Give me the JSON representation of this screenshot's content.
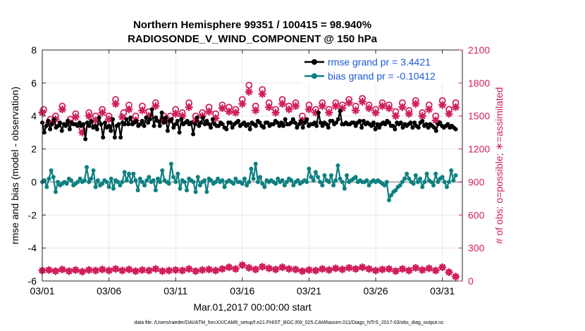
{
  "chart_data": {
    "type": "line",
    "title_line1": "Northern Hemisphere 99351 / 100415 = 98.940%",
    "title_line2": "RADIOSONDE_V_WIND_COMPONENT @ 150 hPa",
    "xlabel": "Mar.01,2017 00:00:00 start",
    "ylabel_left": "rmse and bias (model - observation)",
    "ylabel_right": "# of obs: o=possible; ∗=assimilated",
    "footnote": "data file: /Users/raeder/DAI/ATM_forcXX/CAM6_setup/f.e21.FHIST_BGC.f09_025.CAM6assim.011/Diags_NTrS_2017-03/obs_diag_output.nc",
    "xlim": [
      0,
      31.5
    ],
    "ylim_left": [
      -6,
      8
    ],
    "ylim_right": [
      0,
      2100
    ],
    "x_ticks": [
      0,
      5,
      10,
      15,
      20,
      25,
      30
    ],
    "x_tick_labels": [
      "03/01",
      "03/06",
      "03/11",
      "03/16",
      "03/21",
      "03/26",
      "03/31"
    ],
    "y_left_ticks": [
      "-6",
      "-4",
      "-2",
      "0",
      "2",
      "4",
      "6",
      "8"
    ],
    "y_right_ticks": [
      "0",
      "300",
      "600",
      "900",
      "1200",
      "1500",
      "1800",
      "2100"
    ],
    "colors": {
      "rmse": "#000000",
      "bias": "#0e8080",
      "obs": "#d01f5c",
      "legend_text": "#1a5ad6",
      "zero_line": "#b0b0b0",
      "grid": "#d9d9d9"
    },
    "series": [
      {
        "name": "rmse grand pr = 3.4421",
        "axis": "left",
        "values": [
          3.6,
          3.0,
          3.4,
          3.7,
          3.2,
          3.5,
          3.8,
          3.3,
          3.4,
          3.6,
          3.1,
          3.5,
          3.4,
          3.7,
          3.2,
          3.6,
          3.5,
          3.5,
          3.4,
          3.6,
          3.4,
          3.5,
          2.6,
          3.6,
          3.4,
          3.7,
          3.3,
          3.4,
          3.2,
          3.9,
          3.5,
          2.7,
          3.6,
          3.3,
          3.4,
          3.1,
          3.8,
          2.7,
          3.4,
          3.5,
          2.7,
          3.6,
          3.5,
          3.8,
          3.5,
          3.9,
          3.5,
          3.6,
          3.7,
          3.4,
          3.5,
          3.7,
          3.4,
          3.9,
          3.6,
          3.8,
          4.4,
          3.4,
          3.9,
          3.7,
          3.4,
          4.2,
          3.6,
          3.9,
          3.1,
          3.7,
          3.8,
          3.3,
          3.5,
          3.7,
          3.0,
          3.8,
          3.5,
          3.6,
          3.7,
          3.5,
          3.6,
          2.9,
          3.5,
          3.9,
          3.4,
          3.6,
          3.9,
          3.5,
          3.7,
          3.5,
          3.3,
          3.8,
          3.5,
          3.4,
          3.4,
          3.6,
          3.5,
          3.3,
          3.2,
          3.6,
          3.6,
          3.3,
          3.5,
          3.6,
          3.7,
          3.4,
          3.5,
          3.6,
          3.4,
          3.5,
          3.2,
          3.6,
          3.5,
          3.4,
          3.7,
          3.6,
          3.4,
          3.3,
          3.6,
          3.6,
          3.4,
          3.5,
          3.5,
          3.7,
          3.6,
          3.4,
          3.6,
          3.4,
          3.8,
          3.5,
          3.5,
          3.6,
          3.8,
          3.6,
          3.3,
          3.5,
          3.7,
          3.3,
          3.6,
          3.8,
          3.4,
          3.5,
          3.5,
          3.6,
          3.4,
          4.2,
          3.6,
          3.4,
          3.6,
          3.5,
          3.3,
          3.7,
          3.7,
          3.5,
          3.6,
          3.8,
          4.3,
          3.5,
          3.5,
          3.6,
          3.5,
          3.5,
          3.6,
          3.6,
          3.4,
          3.6,
          3.7,
          3.3,
          3.7,
          3.5,
          3.6,
          3.5,
          3.4,
          3.6,
          3.2,
          3.5,
          3.3,
          3.5,
          3.6,
          3.5,
          3.7,
          3.6,
          3.4,
          3.4,
          3.2,
          3.6,
          3.5,
          3.6,
          3.3,
          3.5,
          3.4,
          3.5,
          3.6,
          3.3,
          3.6,
          3.4,
          3.3,
          3.6,
          3.7,
          3.4,
          3.5,
          3.3,
          3.5,
          3.4,
          3.3,
          3.1,
          3.5,
          3.6,
          3.4,
          3.3,
          3.4,
          3.5,
          3.3,
          3.4,
          3.3,
          3.2
        ]
      },
      {
        "name": "bias grand pr = -0.10412",
        "axis": "left",
        "values": [
          0.0,
          0.1,
          -0.3,
          0.2,
          0.7,
          0.3,
          -0.6,
          0.0,
          -0.2,
          -0.1,
          0.0,
          -0.1,
          0.2,
          0.1,
          -0.2,
          -0.1,
          0.0,
          0.2,
          0.0,
          0.1,
          0.9,
          0.0,
          0.2,
          0.7,
          -0.3,
          0.1,
          -0.2,
          -0.1,
          0.1,
          0.0,
          -0.3,
          0.2,
          -0.4,
          0.1,
          0.0,
          -0.2,
          0.0,
          0.6,
          0.1,
          0.5,
          0.0,
          0.5,
          0.1,
          -0.5,
          0.2,
          0.0,
          -0.2,
          0.1,
          0.3,
          0.0,
          0.1,
          -0.5,
          0.2,
          0.0,
          0.7,
          0.1,
          0.0,
          -0.1,
          1.1,
          0.3,
          0.0,
          0.5,
          -0.4,
          0.1,
          0.0,
          -0.5,
          0.2,
          0.1,
          0.0,
          -0.6,
          0.3,
          -0.2,
          0.0,
          0.1,
          -0.6,
          0.2,
          0.1,
          -0.1,
          0.0,
          0.2,
          0.0,
          0.1,
          -0.3,
          0.0,
          0.1,
          0.0,
          -0.1,
          0.2,
          0.0,
          0.0,
          -0.1,
          0.2,
          -0.2,
          0.0,
          0.8,
          0.2,
          1.1,
          0.0,
          0.3,
          -0.1,
          -0.3,
          0.1,
          0.0,
          0.1,
          0.0,
          -0.1,
          0.2,
          0.0,
          0.1,
          -0.2,
          0.0,
          0.2,
          0.1,
          -0.2,
          0.0,
          0.1,
          -0.1,
          0.0,
          0.1,
          0.0,
          0.8,
          0.3,
          0.1,
          0.6,
          0.3,
          0.0,
          -0.2,
          0.4,
          0.1,
          0.0,
          0.4,
          -0.2,
          0.1,
          1.0,
          0.2,
          0.0,
          -0.4,
          0.4,
          0.0,
          0.1,
          0.2,
          0.3,
          0.0,
          0.1,
          0.0,
          0.0,
          0.1,
          -0.2,
          0.0,
          0.1,
          0.0,
          0.1,
          0.0,
          -0.1,
          -0.2,
          0.0,
          -1.1,
          -0.8,
          -0.6,
          -0.5,
          -0.3,
          -0.2,
          0.0,
          0.2,
          0.5,
          0.2,
          0.0,
          -0.1,
          0.4,
          0.0,
          0.2,
          -0.3,
          0.0,
          0.5,
          0.1,
          0.0,
          -0.2,
          0.5,
          0.0,
          0.2,
          0.3,
          0.0,
          -0.3,
          0.0,
          0.7,
          0.1,
          0.4
        ]
      }
    ],
    "obs_possible": {
      "name": "possible (o)",
      "axis": "right",
      "points": [
        [
          0.1,
          1560
        ],
        [
          0.6,
          1470
        ],
        [
          1.0,
          1500
        ],
        [
          1.5,
          1590
        ],
        [
          2.1,
          1470
        ],
        [
          2.5,
          1520
        ],
        [
          3.0,
          1380
        ],
        [
          3.5,
          1530
        ],
        [
          4.0,
          1500
        ],
        [
          4.5,
          1560
        ],
        [
          5.0,
          1500
        ],
        [
          5.5,
          1650
        ],
        [
          6.1,
          1530
        ],
        [
          6.5,
          1600
        ],
        [
          7.0,
          1500
        ],
        [
          7.5,
          1590
        ],
        [
          8.0,
          1540
        ],
        [
          8.5,
          1620
        ],
        [
          9.1,
          1500
        ],
        [
          9.6,
          1500
        ],
        [
          10.0,
          1560
        ],
        [
          10.5,
          1530
        ],
        [
          11.0,
          1620
        ],
        [
          11.5,
          1500
        ],
        [
          12.0,
          1530
        ],
        [
          12.5,
          1580
        ],
        [
          13.0,
          1520
        ],
        [
          13.5,
          1600
        ],
        [
          14.0,
          1580
        ],
        [
          14.5,
          1560
        ],
        [
          15.0,
          1650
        ],
        [
          15.5,
          1780
        ],
        [
          16.0,
          1590
        ],
        [
          16.5,
          1740
        ],
        [
          17.0,
          1620
        ],
        [
          17.5,
          1560
        ],
        [
          18.0,
          1650
        ],
        [
          18.5,
          1590
        ],
        [
          19.0,
          1620
        ],
        [
          19.5,
          1500
        ],
        [
          20.0,
          1600
        ],
        [
          20.5,
          1560
        ],
        [
          21.0,
          1620
        ],
        [
          21.5,
          1560
        ],
        [
          22.0,
          1620
        ],
        [
          22.5,
          1600
        ],
        [
          23.0,
          1650
        ],
        [
          23.5,
          1590
        ],
        [
          24.0,
          1660
        ],
        [
          24.5,
          1600
        ],
        [
          25.0,
          1560
        ],
        [
          25.5,
          1620
        ],
        [
          26.0,
          1600
        ],
        [
          26.5,
          1540
        ],
        [
          27.0,
          1620
        ],
        [
          27.5,
          1550
        ],
        [
          28.0,
          1640
        ],
        [
          28.5,
          1530
        ],
        [
          29.0,
          1600
        ],
        [
          29.5,
          1500
        ],
        [
          30.0,
          1640
        ],
        [
          30.5,
          1560
        ],
        [
          31.0,
          1620
        ]
      ]
    },
    "obs_assimilated": {
      "name": "assimilated (∗)",
      "axis": "right",
      "points": [
        [
          0.0,
          1530
        ],
        [
          0.5,
          1440
        ],
        [
          1.0,
          1470
        ],
        [
          1.5,
          1560
        ],
        [
          2.0,
          1440
        ],
        [
          2.5,
          1490
        ],
        [
          3.0,
          1350
        ],
        [
          3.5,
          1500
        ],
        [
          4.0,
          1460
        ],
        [
          4.5,
          1530
        ],
        [
          5.0,
          1470
        ],
        [
          5.5,
          1610
        ],
        [
          6.0,
          1490
        ],
        [
          6.5,
          1560
        ],
        [
          7.0,
          1460
        ],
        [
          7.5,
          1550
        ],
        [
          8.0,
          1500
        ],
        [
          8.5,
          1590
        ],
        [
          9.0,
          1460
        ],
        [
          9.5,
          1460
        ],
        [
          10.0,
          1520
        ],
        [
          10.5,
          1500
        ],
        [
          11.0,
          1580
        ],
        [
          11.5,
          1460
        ],
        [
          12.0,
          1500
        ],
        [
          12.5,
          1540
        ],
        [
          13.0,
          1480
        ],
        [
          13.5,
          1570
        ],
        [
          14.0,
          1540
        ],
        [
          14.5,
          1530
        ],
        [
          15.0,
          1610
        ],
        [
          15.5,
          1720
        ],
        [
          16.0,
          1550
        ],
        [
          16.5,
          1700
        ],
        [
          17.0,
          1580
        ],
        [
          17.5,
          1530
        ],
        [
          18.0,
          1610
        ],
        [
          18.5,
          1560
        ],
        [
          19.0,
          1590
        ],
        [
          19.5,
          1460
        ],
        [
          20.0,
          1560
        ],
        [
          20.5,
          1530
        ],
        [
          21.0,
          1590
        ],
        [
          21.5,
          1530
        ],
        [
          22.0,
          1590
        ],
        [
          22.5,
          1570
        ],
        [
          23.0,
          1620
        ],
        [
          23.5,
          1550
        ],
        [
          24.0,
          1630
        ],
        [
          24.5,
          1570
        ],
        [
          25.0,
          1530
        ],
        [
          25.5,
          1590
        ],
        [
          26.0,
          1570
        ],
        [
          26.5,
          1500
        ],
        [
          27.0,
          1580
        ],
        [
          27.5,
          1520
        ],
        [
          28.0,
          1610
        ],
        [
          28.5,
          1500
        ],
        [
          29.0,
          1560
        ],
        [
          29.5,
          1460
        ],
        [
          30.0,
          1600
        ],
        [
          30.5,
          1520
        ],
        [
          31.0,
          1580
        ]
      ]
    },
    "obs_bottom": {
      "name": "bottom row of observation counts",
      "axis": "right",
      "points": [
        [
          0.0,
          95
        ],
        [
          0.5,
          100
        ],
        [
          1.0,
          90
        ],
        [
          1.5,
          105
        ],
        [
          2.0,
          90
        ],
        [
          2.5,
          100
        ],
        [
          3.0,
          85
        ],
        [
          3.5,
          100
        ],
        [
          4.0,
          95
        ],
        [
          4.5,
          105
        ],
        [
          5.0,
          95
        ],
        [
          5.5,
          110
        ],
        [
          6.0,
          95
        ],
        [
          6.5,
          105
        ],
        [
          7.0,
          90
        ],
        [
          7.5,
          100
        ],
        [
          8.0,
          95
        ],
        [
          8.5,
          110
        ],
        [
          9.0,
          90
        ],
        [
          9.5,
          95
        ],
        [
          10.0,
          100
        ],
        [
          10.5,
          95
        ],
        [
          11.0,
          110
        ],
        [
          11.5,
          90
        ],
        [
          12.0,
          100
        ],
        [
          12.5,
          105
        ],
        [
          13.0,
          95
        ],
        [
          13.5,
          110
        ],
        [
          14.0,
          125
        ],
        [
          14.5,
          110
        ],
        [
          15.0,
          145
        ],
        [
          15.5,
          120
        ],
        [
          16.0,
          105
        ],
        [
          16.5,
          130
        ],
        [
          17.0,
          115
        ],
        [
          17.5,
          105
        ],
        [
          18.0,
          125
        ],
        [
          18.5,
          110
        ],
        [
          19.0,
          105
        ],
        [
          19.5,
          90
        ],
        [
          20.0,
          100
        ],
        [
          20.5,
          95
        ],
        [
          21.0,
          110
        ],
        [
          21.5,
          100
        ],
        [
          22.0,
          115
        ],
        [
          22.5,
          105
        ],
        [
          23.0,
          120
        ],
        [
          23.5,
          110
        ],
        [
          24.0,
          125
        ],
        [
          24.5,
          110
        ],
        [
          25.0,
          95
        ],
        [
          25.5,
          105
        ],
        [
          26.0,
          110
        ],
        [
          26.5,
          90
        ],
        [
          27.0,
          110
        ],
        [
          27.5,
          95
        ],
        [
          28.0,
          120
        ],
        [
          28.5,
          100
        ],
        [
          29.0,
          115
        ],
        [
          29.5,
          95
        ],
        [
          30.0,
          125
        ],
        [
          30.5,
          80
        ],
        [
          31.0,
          40
        ]
      ]
    }
  }
}
